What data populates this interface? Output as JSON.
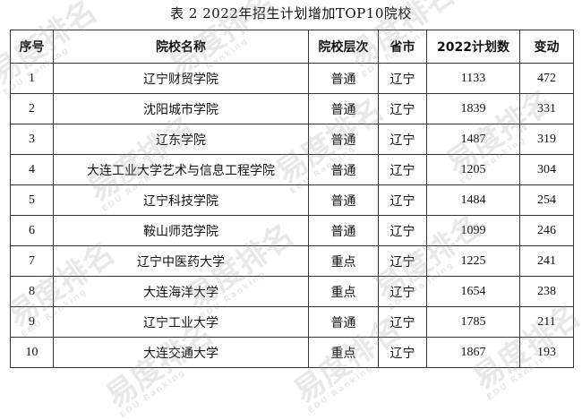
{
  "caption": "表 2 2022年招生计划增加TOP10院校",
  "table": {
    "headers": [
      "序号",
      "院校名称",
      "院校层次",
      "省市",
      "2022计划数",
      "变动"
    ],
    "rows": [
      {
        "no": "1",
        "name": "辽宁财贸学院",
        "level": "普通",
        "province": "辽宁",
        "plan": "1133",
        "change": "472"
      },
      {
        "no": "2",
        "name": "沈阳城市学院",
        "level": "普通",
        "province": "辽宁",
        "plan": "1839",
        "change": "331"
      },
      {
        "no": "3",
        "name": "辽东学院",
        "level": "普通",
        "province": "辽宁",
        "plan": "1487",
        "change": "319"
      },
      {
        "no": "4",
        "name": "大连工业大学艺术与信息工程学院",
        "level": "普通",
        "province": "辽宁",
        "plan": "1205",
        "change": "304"
      },
      {
        "no": "5",
        "name": "辽宁科技学院",
        "level": "普通",
        "province": "辽宁",
        "plan": "1484",
        "change": "254"
      },
      {
        "no": "6",
        "name": "鞍山师范学院",
        "level": "普通",
        "province": "辽宁",
        "plan": "1099",
        "change": "246"
      },
      {
        "no": "7",
        "name": "辽宁中医药大学",
        "level": "重点",
        "province": "辽宁",
        "plan": "1225",
        "change": "241"
      },
      {
        "no": "8",
        "name": "大连海洋大学",
        "level": "重点",
        "province": "辽宁",
        "plan": "1654",
        "change": "238"
      },
      {
        "no": "9",
        "name": "辽宁工业大学",
        "level": "普通",
        "province": "辽宁",
        "plan": "1785",
        "change": "211"
      },
      {
        "no": "10",
        "name": "大连交通大学",
        "level": "重点",
        "province": "辽宁",
        "plan": "1867",
        "change": "193"
      }
    ]
  },
  "watermark": {
    "text": "易度排名",
    "subtext": "EDU Ranking"
  }
}
